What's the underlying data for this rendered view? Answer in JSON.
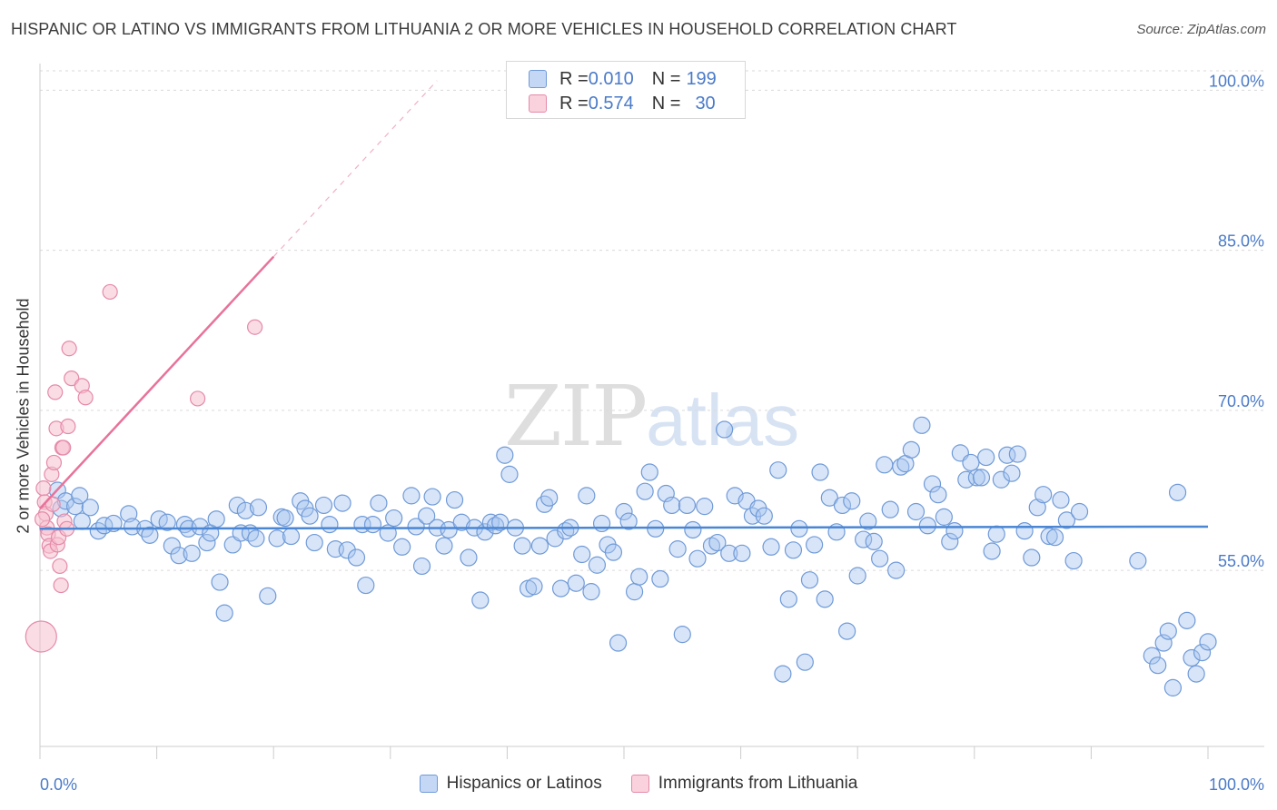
{
  "header": {
    "title": "HISPANIC OR LATINO VS IMMIGRANTS FROM LITHUANIA 2 OR MORE VEHICLES IN HOUSEHOLD CORRELATION CHART",
    "source": "Source: ZipAtlas.com"
  },
  "watermark": {
    "zip": "ZIP",
    "atlas": "atlas"
  },
  "legend": {
    "rows": [
      {
        "r_label": "R = ",
        "r_value": "0.010",
        "n_label": "N = ",
        "n_value": "199",
        "color": "#a9c6ef",
        "border": "#6f9ad8"
      },
      {
        "r_label": "R = ",
        "r_value": "0.574",
        "n_label": "N = ",
        "n_value": "30",
        "color": "#f6bfd0",
        "border": "#e58aa8"
      }
    ]
  },
  "bottom_legend": {
    "items": [
      {
        "label": "Hispanics or Latinos",
        "color": "#a9c6ef",
        "border": "#6f9ad8"
      },
      {
        "label": "Immigrants from Lithuania",
        "color": "#f6bfd0",
        "border": "#e58aa8"
      }
    ]
  },
  "chart_data": {
    "type": "scatter",
    "title": "HISPANIC OR LATINO VS IMMIGRANTS FROM LITHUANIA 2 OR MORE VEHICLES IN HOUSEHOLD CORRELATION CHART",
    "xlabel": "",
    "ylabel": "2 or more Vehicles in Household",
    "xlim": [
      0,
      100
    ],
    "ylim": [
      38.5,
      102.5
    ],
    "x_tick_labels": [
      "0.0%",
      "100.0%"
    ],
    "y_ticks": [
      55,
      70,
      85,
      100
    ],
    "y_tick_labels": [
      "55.0%",
      "70.0%",
      "85.0%",
      "100.0%"
    ],
    "grid": true,
    "colors": {
      "blue": "#4a86d4",
      "blue_fill": "#a9c6ef",
      "pink": "#e8729a",
      "pink_fill": "#f6bfd0",
      "axis_text": "#4a7ac8"
    },
    "series": [
      {
        "name": "Hispanics or Latinos",
        "r": 0.01,
        "n": 199,
        "trend": {
          "x": [
            0,
            100
          ],
          "y": [
            58.9,
            59.1
          ]
        },
        "points": [
          [
            1.5,
            62.5
          ],
          [
            1.8,
            60.8
          ],
          [
            2.2,
            61.5
          ],
          [
            3.0,
            61.0
          ],
          [
            3.4,
            62.0
          ],
          [
            3.6,
            59.6
          ],
          [
            4.3,
            60.9
          ],
          [
            5.0,
            58.7
          ],
          [
            5.5,
            59.2
          ],
          [
            6.3,
            59.4
          ],
          [
            7.6,
            60.3
          ],
          [
            7.9,
            59.1
          ],
          [
            9.0,
            58.9
          ],
          [
            9.4,
            58.3
          ],
          [
            10.2,
            59.8
          ],
          [
            10.9,
            59.5
          ],
          [
            11.3,
            57.3
          ],
          [
            11.9,
            56.4
          ],
          [
            12.4,
            59.3
          ],
          [
            12.7,
            58.9
          ],
          [
            13.0,
            56.6
          ],
          [
            13.7,
            59.1
          ],
          [
            14.3,
            57.6
          ],
          [
            14.6,
            58.5
          ],
          [
            15.1,
            59.8
          ],
          [
            15.4,
            53.9
          ],
          [
            15.8,
            51.0
          ],
          [
            16.5,
            57.4
          ],
          [
            16.9,
            61.1
          ],
          [
            17.2,
            58.5
          ],
          [
            17.6,
            60.6
          ],
          [
            18.0,
            58.5
          ],
          [
            18.5,
            58.0
          ],
          [
            18.7,
            60.9
          ],
          [
            19.5,
            52.6
          ],
          [
            20.3,
            58.0
          ],
          [
            20.7,
            60.0
          ],
          [
            21.0,
            59.9
          ],
          [
            21.5,
            58.2
          ],
          [
            22.3,
            61.5
          ],
          [
            22.7,
            60.8
          ],
          [
            23.1,
            60.1
          ],
          [
            23.5,
            57.6
          ],
          [
            24.3,
            61.1
          ],
          [
            24.8,
            59.3
          ],
          [
            25.3,
            57.0
          ],
          [
            25.9,
            61.3
          ],
          [
            26.3,
            56.9
          ],
          [
            27.1,
            56.2
          ],
          [
            27.6,
            59.3
          ],
          [
            27.9,
            53.6
          ],
          [
            28.5,
            59.3
          ],
          [
            29.0,
            61.3
          ],
          [
            29.8,
            58.5
          ],
          [
            30.3,
            59.9
          ],
          [
            31.0,
            57.2
          ],
          [
            31.8,
            62.0
          ],
          [
            32.2,
            59.1
          ],
          [
            32.7,
            55.4
          ],
          [
            33.1,
            60.1
          ],
          [
            33.6,
            61.9
          ],
          [
            34.0,
            59.0
          ],
          [
            34.6,
            57.3
          ],
          [
            35.0,
            58.8
          ],
          [
            35.5,
            61.6
          ],
          [
            36.1,
            59.5
          ],
          [
            36.7,
            56.2
          ],
          [
            37.2,
            59.0
          ],
          [
            37.7,
            52.2
          ],
          [
            38.1,
            58.6
          ],
          [
            38.6,
            59.5
          ],
          [
            39.0,
            59.2
          ],
          [
            39.4,
            59.5
          ],
          [
            39.8,
            65.8
          ],
          [
            40.2,
            64.0
          ],
          [
            40.7,
            59.0
          ],
          [
            41.3,
            57.3
          ],
          [
            41.8,
            53.3
          ],
          [
            42.3,
            53.5
          ],
          [
            42.8,
            57.3
          ],
          [
            43.2,
            61.2
          ],
          [
            43.6,
            61.8
          ],
          [
            44.1,
            58.0
          ],
          [
            44.6,
            53.3
          ],
          [
            45.0,
            58.7
          ],
          [
            45.4,
            59.0
          ],
          [
            45.9,
            53.8
          ],
          [
            46.4,
            56.5
          ],
          [
            46.8,
            62.0
          ],
          [
            47.2,
            53.0
          ],
          [
            47.7,
            55.5
          ],
          [
            48.1,
            59.4
          ],
          [
            48.6,
            57.4
          ],
          [
            49.1,
            56.7
          ],
          [
            49.5,
            48.2
          ],
          [
            50.0,
            60.5
          ],
          [
            50.4,
            59.6
          ],
          [
            50.9,
            53.0
          ],
          [
            51.3,
            54.4
          ],
          [
            51.8,
            62.4
          ],
          [
            52.2,
            64.2
          ],
          [
            52.7,
            58.9
          ],
          [
            53.1,
            54.2
          ],
          [
            53.6,
            62.2
          ],
          [
            54.1,
            61.1
          ],
          [
            54.6,
            57.0
          ],
          [
            55.0,
            49.0
          ],
          [
            55.4,
            61.1
          ],
          [
            55.9,
            58.8
          ],
          [
            56.3,
            56.1
          ],
          [
            56.9,
            61.0
          ],
          [
            57.5,
            57.3
          ],
          [
            58.0,
            57.6
          ],
          [
            58.6,
            68.2
          ],
          [
            59.0,
            56.6
          ],
          [
            59.5,
            62.0
          ],
          [
            60.1,
            56.6
          ],
          [
            60.5,
            61.5
          ],
          [
            61.0,
            60.1
          ],
          [
            61.5,
            60.8
          ],
          [
            62.0,
            60.1
          ],
          [
            62.6,
            57.2
          ],
          [
            63.2,
            64.4
          ],
          [
            63.6,
            45.3
          ],
          [
            64.1,
            52.3
          ],
          [
            64.5,
            56.9
          ],
          [
            65.0,
            58.9
          ],
          [
            65.5,
            46.4
          ],
          [
            65.9,
            54.1
          ],
          [
            66.3,
            57.4
          ],
          [
            66.8,
            64.2
          ],
          [
            67.2,
            52.3
          ],
          [
            67.6,
            61.8
          ],
          [
            68.2,
            58.6
          ],
          [
            68.7,
            61.1
          ],
          [
            69.1,
            49.3
          ],
          [
            69.5,
            61.5
          ],
          [
            70.0,
            54.5
          ],
          [
            70.5,
            57.9
          ],
          [
            70.9,
            59.6
          ],
          [
            71.4,
            57.7
          ],
          [
            71.9,
            56.1
          ],
          [
            72.3,
            64.9
          ],
          [
            72.8,
            60.7
          ],
          [
            73.3,
            55.0
          ],
          [
            73.7,
            64.7
          ],
          [
            74.1,
            65.0
          ],
          [
            74.6,
            66.3
          ],
          [
            75.0,
            60.5
          ],
          [
            75.5,
            68.6
          ],
          [
            76.0,
            59.2
          ],
          [
            76.4,
            63.1
          ],
          [
            76.9,
            62.1
          ],
          [
            77.4,
            60.0
          ],
          [
            77.9,
            57.7
          ],
          [
            78.3,
            58.7
          ],
          [
            78.8,
            66.0
          ],
          [
            79.3,
            63.5
          ],
          [
            79.7,
            65.1
          ],
          [
            80.2,
            63.7
          ],
          [
            80.6,
            63.7
          ],
          [
            81.0,
            65.6
          ],
          [
            81.5,
            56.8
          ],
          [
            81.9,
            58.4
          ],
          [
            82.3,
            63.5
          ],
          [
            82.8,
            65.8
          ],
          [
            83.2,
            64.1
          ],
          [
            83.7,
            65.9
          ],
          [
            84.3,
            58.7
          ],
          [
            84.9,
            56.2
          ],
          [
            85.4,
            60.9
          ],
          [
            85.9,
            62.1
          ],
          [
            86.4,
            58.2
          ],
          [
            86.9,
            58.1
          ],
          [
            87.4,
            61.6
          ],
          [
            87.9,
            59.7
          ],
          [
            88.5,
            55.9
          ],
          [
            89.0,
            60.5
          ],
          [
            94.0,
            55.9
          ],
          [
            95.2,
            47.0
          ],
          [
            95.7,
            46.1
          ],
          [
            96.2,
            48.2
          ],
          [
            96.6,
            49.3
          ],
          [
            97.0,
            44.0
          ],
          [
            97.4,
            62.3
          ],
          [
            98.2,
            50.3
          ],
          [
            98.6,
            46.8
          ],
          [
            99.0,
            45.3
          ],
          [
            99.5,
            47.3
          ],
          [
            100.0,
            48.3
          ]
        ]
      },
      {
        "name": "Immigrants from Lithuania",
        "r": 0.574,
        "n": 30,
        "trend": {
          "x": [
            0,
            20
          ],
          "y": [
            60.8,
            84.4
          ]
        },
        "trend_dashed": {
          "x": [
            20,
            34
          ],
          "y": [
            84.4,
            100.9
          ]
        },
        "points": [
          [
            0.3,
            62.7
          ],
          [
            0.4,
            61.4
          ],
          [
            0.5,
            60.3
          ],
          [
            0.6,
            59.0
          ],
          [
            0.7,
            58.4
          ],
          [
            0.8,
            57.3
          ],
          [
            0.9,
            56.8
          ],
          [
            1.0,
            64.0
          ],
          [
            1.1,
            61.2
          ],
          [
            1.2,
            65.1
          ],
          [
            1.3,
            71.7
          ],
          [
            1.4,
            68.3
          ],
          [
            1.5,
            57.4
          ],
          [
            1.6,
            58.1
          ],
          [
            1.7,
            55.4
          ],
          [
            1.8,
            53.6
          ],
          [
            1.9,
            66.5
          ],
          [
            2.0,
            66.5
          ],
          [
            2.1,
            59.6
          ],
          [
            2.3,
            58.9
          ],
          [
            2.4,
            68.5
          ],
          [
            2.5,
            75.8
          ],
          [
            2.7,
            73.0
          ],
          [
            3.6,
            72.3
          ],
          [
            3.9,
            71.2
          ],
          [
            6.0,
            81.1
          ],
          [
            13.5,
            71.1
          ],
          [
            18.4,
            77.8
          ],
          [
            0.1,
            48.8
          ],
          [
            0.2,
            59.8
          ]
        ]
      }
    ]
  }
}
